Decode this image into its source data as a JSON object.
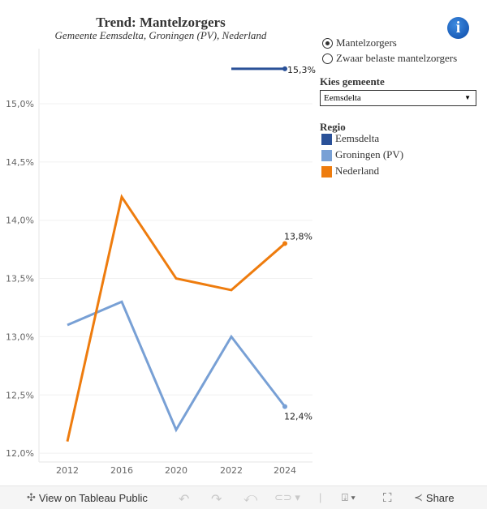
{
  "header": {
    "title": "Trend:  Mantelzorgers",
    "subtitle": "Gemeente Eemsdelta, Groningen (PV), Nederland"
  },
  "controls": {
    "measure_options": [
      {
        "label": "Mantelzorgers",
        "selected": true
      },
      {
        "label": "Zwaar belaste mantelzorgers",
        "selected": false
      }
    ],
    "gemeente_label": "Kies  gemeente",
    "gemeente_value": "Eemsdelta",
    "legend_title": "Regio"
  },
  "toolbar": {
    "view_label": "View on Tableau Public",
    "share_label": "Share"
  },
  "chart_data": {
    "type": "line",
    "title": "Trend:  Mantelzorgers",
    "subtitle": "Gemeente Eemsdelta, Groningen (PV), Nederland",
    "categories": [
      "2012",
      "2016",
      "2020",
      "2022",
      "2024"
    ],
    "yticks": [
      "12,0%",
      "12,5%",
      "13,0%",
      "13,5%",
      "14,0%",
      "14,5%",
      "15,0%"
    ],
    "ylim": [
      11.92,
      15.47
    ],
    "grid": true,
    "legend_placement": "right",
    "series": [
      {
        "name": "Eemsdelta",
        "color": "#2a5198",
        "values": [
          null,
          null,
          null,
          15.3,
          15.3
        ],
        "end_label": "15,3%"
      },
      {
        "name": "Groningen (PV)",
        "color": "#78a0d5",
        "values": [
          13.1,
          13.3,
          12.2,
          13.0,
          12.4
        ],
        "end_label": "12,4%"
      },
      {
        "name": "Nederland",
        "color": "#ee7c0e",
        "values": [
          12.1,
          14.2,
          13.5,
          13.4,
          13.8
        ],
        "end_label": "13,8%"
      }
    ]
  }
}
